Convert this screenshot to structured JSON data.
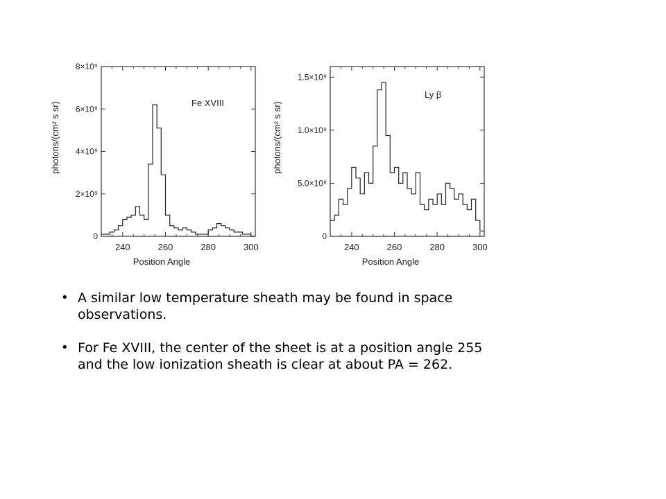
{
  "chart_data": [
    {
      "type": "line",
      "step": true,
      "legend_label": "Fe XVIII",
      "legend_placement": "top-right",
      "xlabel": "Position Angle",
      "ylabel": "photons/(cm² s sr)",
      "xlim": [
        230,
        302
      ],
      "ylim": [
        0,
        8000000000
      ],
      "x_ticks": [
        240,
        260,
        280,
        300
      ],
      "x_tick_labels": [
        "240",
        "260",
        "280",
        "300"
      ],
      "y_ticks": [
        0,
        2000000000,
        4000000000,
        6000000000,
        8000000000
      ],
      "y_tick_labels": [
        "0",
        "2×10⁹",
        "4×10⁹",
        "6×10⁹",
        "8×10⁹"
      ],
      "grid": false,
      "x": [
        231,
        233,
        235,
        237,
        239,
        241,
        243,
        245,
        247,
        249,
        251,
        253,
        255,
        257,
        259,
        261,
        263,
        265,
        267,
        269,
        271,
        273,
        275,
        277,
        279,
        281,
        283,
        285,
        287,
        289,
        291,
        293,
        295,
        297,
        299,
        301
      ],
      "values": [
        100000000,
        100000000,
        200000000,
        300000000,
        500000000,
        800000000,
        900000000,
        1000000000,
        1400000000,
        1000000000,
        800000000,
        3400000000,
        6200000000,
        5100000000,
        2900000000,
        1000000000,
        500000000,
        400000000,
        300000000,
        400000000,
        300000000,
        200000000,
        100000000,
        100000000,
        100000000,
        300000000,
        400000000,
        600000000,
        500000000,
        400000000,
        300000000,
        200000000,
        200000000,
        100000000,
        100000000,
        0
      ]
    },
    {
      "type": "line",
      "step": true,
      "legend_label": "Ly β",
      "legend_placement": "top-right",
      "xlabel": "Position Angle",
      "ylabel": "photons/(cm² s sr)",
      "xlim": [
        230,
        302
      ],
      "ylim": [
        0,
        1600000000
      ],
      "x_ticks": [
        240,
        260,
        280,
        300
      ],
      "x_tick_labels": [
        "240",
        "260",
        "280",
        "300"
      ],
      "y_ticks": [
        0,
        500000000,
        1000000000,
        1500000000
      ],
      "y_tick_labels": [
        "0",
        "5.0×10⁸",
        "1.0×10⁹",
        "1.5×10⁹"
      ],
      "grid": false,
      "x": [
        231,
        233,
        235,
        237,
        239,
        241,
        243,
        245,
        247,
        249,
        251,
        253,
        255,
        257,
        259,
        261,
        263,
        265,
        267,
        269,
        271,
        273,
        275,
        277,
        279,
        281,
        283,
        285,
        287,
        289,
        291,
        293,
        295,
        297,
        299,
        301
      ],
      "values": [
        150000000,
        200000000,
        350000000,
        300000000,
        450000000,
        650000000,
        550000000,
        400000000,
        600000000,
        500000000,
        850000000,
        1380000000,
        1450000000,
        950000000,
        600000000,
        650000000,
        500000000,
        600000000,
        450000000,
        400000000,
        600000000,
        300000000,
        250000000,
        350000000,
        300000000,
        400000000,
        300000000,
        500000000,
        450000000,
        350000000,
        400000000,
        300000000,
        250000000,
        350000000,
        150000000,
        50000000
      ]
    }
  ],
  "bullets": [
    "A similar low temperature sheath may be found in space observations.",
    "For Fe XVIII, the center of the sheet is at a position angle 255 and the low ionization sheath is clear at about PA = 262."
  ]
}
